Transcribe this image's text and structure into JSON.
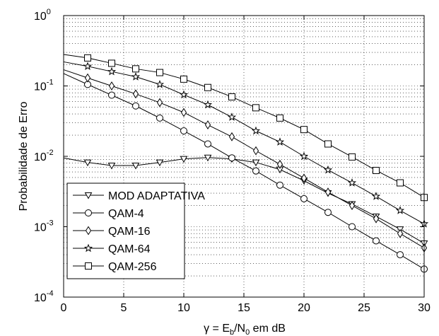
{
  "chart_data": {
    "type": "line",
    "xlabel_parts": {
      "prefix": "γ = E",
      "sub1": "b",
      "mid": "/N",
      "sub2": "0",
      "suffix": " em dB"
    },
    "ylabel": "Probabilidade de Erro",
    "xlim": [
      0,
      30
    ],
    "ylim": [
      0.0001,
      1
    ],
    "yscale": "log",
    "x_ticks": [
      0,
      5,
      10,
      15,
      20,
      25,
      30
    ],
    "y_ticks": [
      {
        "base": "10",
        "exp": "0",
        "value": 1
      },
      {
        "base": "10",
        "exp": "-1",
        "value": 0.1
      },
      {
        "base": "10",
        "exp": "-2",
        "value": 0.01
      },
      {
        "base": "10",
        "exp": "-3",
        "value": 0.001
      },
      {
        "base": "10",
        "exp": "-4",
        "value": 0.0001
      }
    ],
    "grid": true,
    "legend_position": "bottom-left",
    "series": [
      {
        "name": "MOD ADAPTATIVA",
        "marker": "triangle-down",
        "x": [
          0,
          2,
          4,
          6,
          8,
          10,
          12,
          14,
          16,
          18,
          20,
          22,
          24,
          26,
          28,
          30
        ],
        "y": [
          0.0095,
          0.0082,
          0.0074,
          0.0074,
          0.0082,
          0.0092,
          0.0096,
          0.0092,
          0.0082,
          0.0065,
          0.0045,
          0.003,
          0.0021,
          0.0014,
          0.00092,
          0.00058
        ]
      },
      {
        "name": "QAM-4",
        "marker": "circle",
        "x": [
          0,
          2,
          4,
          6,
          8,
          10,
          12,
          14,
          16,
          18,
          20,
          22,
          24,
          26,
          28,
          30
        ],
        "y": [
          0.15,
          0.105,
          0.074,
          0.052,
          0.035,
          0.023,
          0.015,
          0.0095,
          0.0062,
          0.0039,
          0.0025,
          0.0016,
          0.001,
          0.00063,
          0.0004,
          0.00025
        ]
      },
      {
        "name": "QAM-16",
        "marker": "diamond",
        "x": [
          0,
          2,
          4,
          6,
          8,
          10,
          12,
          14,
          16,
          18,
          20,
          22,
          24,
          26,
          28,
          30
        ],
        "y": [
          0.17,
          0.13,
          0.1,
          0.077,
          0.058,
          0.042,
          0.028,
          0.019,
          0.012,
          0.0077,
          0.0049,
          0.0031,
          0.002,
          0.0013,
          0.0008,
          0.0005
        ]
      },
      {
        "name": "QAM-64",
        "marker": "star",
        "x": [
          0,
          2,
          4,
          6,
          8,
          10,
          12,
          14,
          16,
          18,
          20,
          22,
          24,
          26,
          28,
          30
        ],
        "y": [
          0.22,
          0.19,
          0.16,
          0.135,
          0.105,
          0.075,
          0.054,
          0.036,
          0.023,
          0.016,
          0.01,
          0.0064,
          0.0042,
          0.0027,
          0.0017,
          0.0011
        ]
      },
      {
        "name": "QAM-256",
        "marker": "square",
        "x": [
          0,
          2,
          4,
          6,
          8,
          10,
          12,
          14,
          16,
          18,
          20,
          22,
          24,
          26,
          28,
          30
        ],
        "y": [
          0.28,
          0.25,
          0.21,
          0.175,
          0.155,
          0.125,
          0.095,
          0.07,
          0.049,
          0.035,
          0.024,
          0.015,
          0.0098,
          0.0063,
          0.0042,
          0.0026
        ]
      }
    ]
  }
}
